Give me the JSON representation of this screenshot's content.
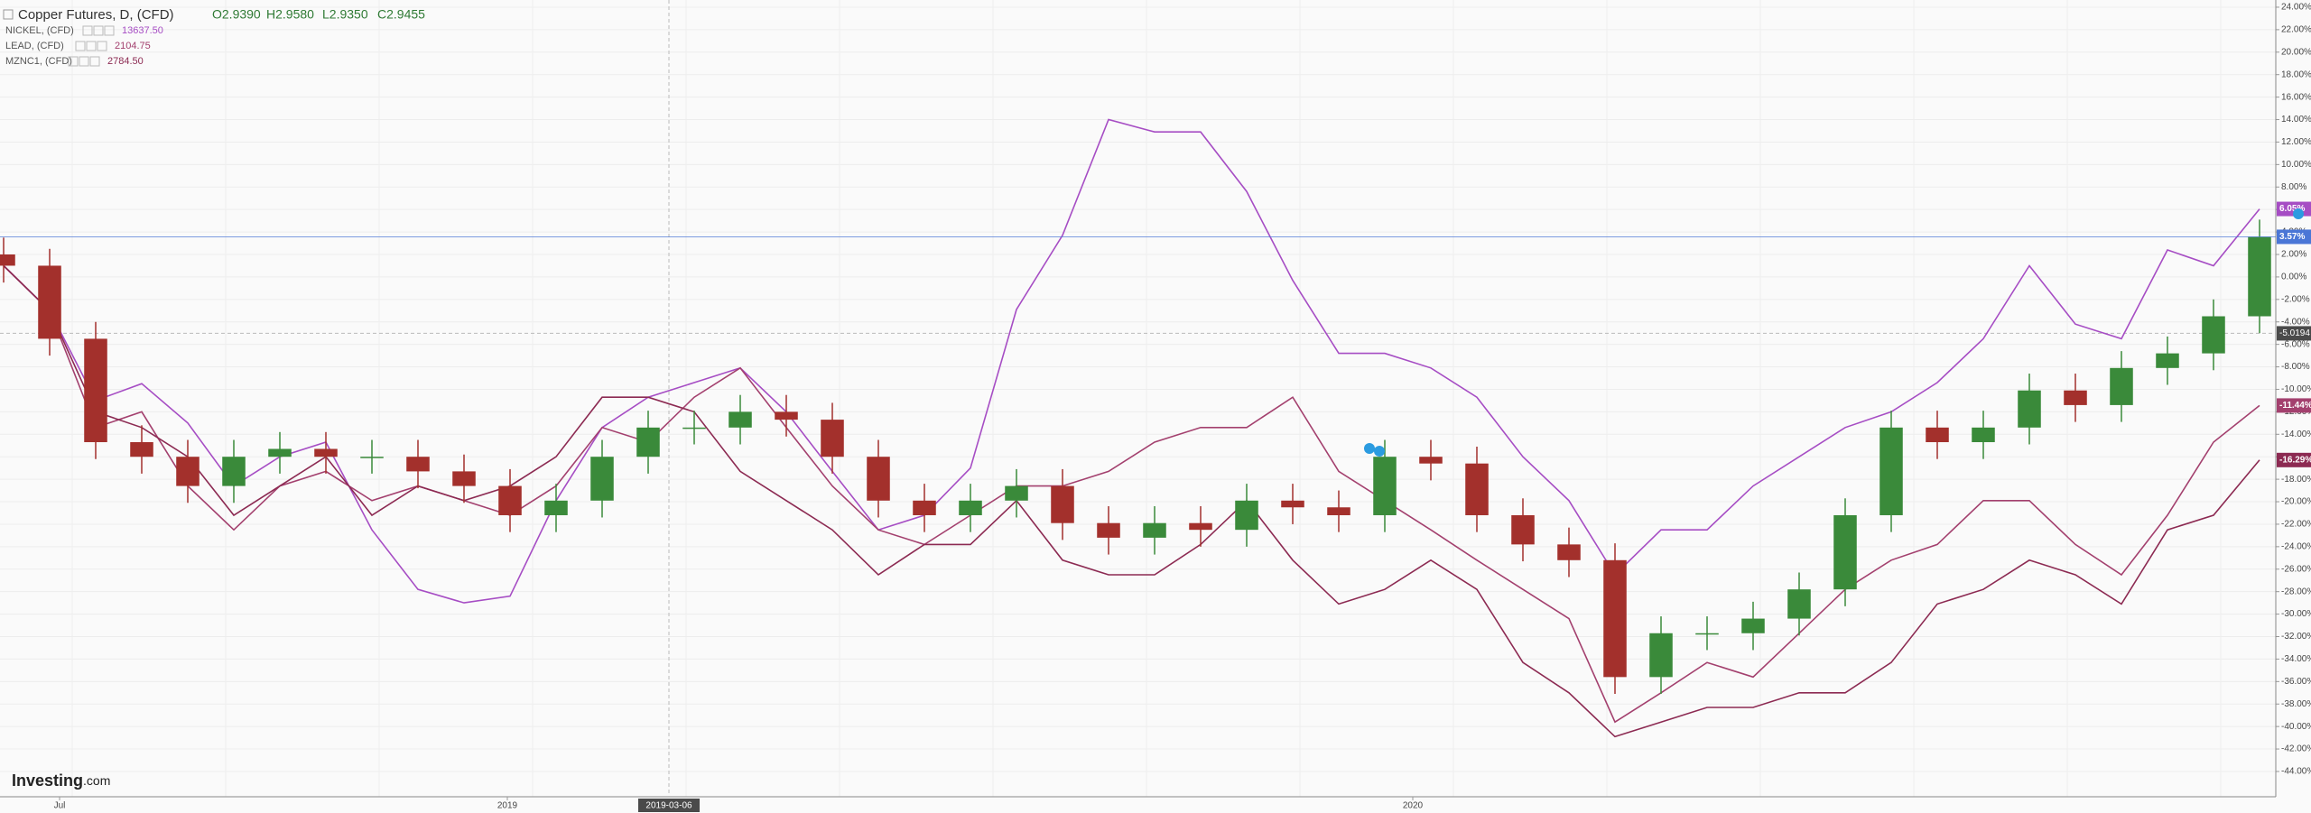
{
  "chart_data": {
    "type": "candlestick",
    "title": "Copper Futures, D, (CFD)",
    "quote": [
      "O2.9390",
      "H2.9580",
      "L2.9350",
      "C2.9455"
    ],
    "color_up": "#3a8a3a",
    "color_down": "#a3302c",
    "last_color": "#4a76d6",
    "last_value_label": "3.57%",
    "open": [
      2,
      1,
      -5.5,
      -14.7,
      -16,
      -18.6,
      -16,
      -15.3,
      -16,
      -16,
      -17.3,
      -18.6,
      -21.2,
      -19.9,
      -16,
      -13.4,
      -13.4,
      -12,
      -12.7,
      -16,
      -19.9,
      -21.2,
      -19.9,
      -18.6,
      -21.9,
      -23.2,
      -21.9,
      -22.5,
      -19.9,
      -20.5,
      -21.2,
      -16,
      -16.6,
      -21.2,
      -23.8,
      -25.2,
      -35.6,
      -31.7,
      -31.7,
      -30.4,
      -27.8,
      -21.2,
      -13.4,
      -14.7,
      -13.4,
      -10.1,
      -11.4,
      -8.1,
      -6.8,
      -3.5
    ],
    "high": [
      3.5,
      2.5,
      -4,
      -13.2,
      -14.5,
      -14.5,
      -13.8,
      -13.8,
      -14.5,
      -14.5,
      -15.8,
      -17.1,
      -18.4,
      -14.5,
      -11.9,
      -11.9,
      -10.5,
      -10.5,
      -11.2,
      -14.5,
      -18.4,
      -18.4,
      -17.1,
      -17.1,
      -20.4,
      -20.4,
      -20.4,
      -18.4,
      -18.4,
      -19,
      -14.5,
      -14.5,
      -15.1,
      -19.7,
      -22.3,
      -23.7,
      -30.2,
      -30.2,
      -28.9,
      -26.3,
      -19.7,
      -11.9,
      -11.9,
      -11.9,
      -8.6,
      -8.6,
      -6.6,
      -5.3,
      -2,
      5.1
    ],
    "low": [
      -0.5,
      -7,
      -16.2,
      -17.5,
      -20.1,
      -20.1,
      -17.5,
      -17.5,
      -17.5,
      -18.8,
      -20.1,
      -22.7,
      -22.7,
      -21.4,
      -17.5,
      -14.9,
      -14.9,
      -14.2,
      -17.5,
      -21.4,
      -22.7,
      -22.7,
      -21.4,
      -23.4,
      -24.7,
      -24.7,
      -24,
      -24,
      -22,
      -22.7,
      -22.7,
      -18.1,
      -22.7,
      -25.3,
      -26.7,
      -37.1,
      -37.1,
      -33.2,
      -33.2,
      -31.9,
      -29.3,
      -22.7,
      -16.2,
      -16.2,
      -14.9,
      -12.9,
      -12.9,
      -9.6,
      -8.3,
      -5
    ],
    "close": [
      1,
      -5.5,
      -14.7,
      -16,
      -18.6,
      -16,
      -15.3,
      -16,
      -16,
      -17.3,
      -18.6,
      -21.2,
      -19.9,
      -16,
      -13.4,
      -13.4,
      -12,
      -12.7,
      -16,
      -19.9,
      -21.2,
      -19.9,
      -18.6,
      -21.9,
      -23.2,
      -21.9,
      -22.5,
      -19.9,
      -20.5,
      -21.2,
      -16,
      -16.6,
      -21.2,
      -23.8,
      -25.2,
      -35.6,
      -31.7,
      -31.7,
      -30.4,
      -27.8,
      -21.2,
      -13.4,
      -14.7,
      -13.4,
      -10.1,
      -11.4,
      -8.1,
      -6.8,
      -3.5,
      3.57
    ],
    "series": [
      {
        "name": "NICKEL, (CFD)",
        "price": "13637.50",
        "color": "#a64dc4",
        "last_value_label": "6.05%",
        "values": [
          1,
          -3,
          -11,
          -9.5,
          -13,
          -18.6,
          -16,
          -14.7,
          -22.5,
          -27.8,
          -29,
          -28.4,
          -19.9,
          -13.4,
          -10.7,
          -9.4,
          -8.1,
          -12,
          -17.3,
          -22.5,
          -21.2,
          -17,
          -2.9,
          3.7,
          14,
          12.9,
          12.9,
          7.6,
          -0.3,
          -6.8,
          -6.8,
          -8.1,
          -10.7,
          -16,
          -19.9,
          -26.5,
          -22.5,
          -22.5,
          -18.6,
          -16,
          -13.4,
          -12,
          -9.4,
          -5.5,
          1,
          -4.2,
          -5.5,
          2.4,
          1,
          6.05
        ]
      },
      {
        "name": "LEAD, (CFD)",
        "price": "2104.75",
        "color": "#a3406e",
        "last_value_label": "-11.44%",
        "values": [
          1,
          -3,
          -13.4,
          -12,
          -18.6,
          -22.5,
          -18.6,
          -17.3,
          -19.9,
          -18.6,
          -19.9,
          -21.2,
          -18.6,
          -13.4,
          -14.7,
          -10.7,
          -8.1,
          -13.4,
          -18.6,
          -22.5,
          -23.8,
          -21.2,
          -18.6,
          -18.6,
          -17.3,
          -14.7,
          -13.4,
          -13.4,
          -10.7,
          -17.3,
          -19.9,
          -22.5,
          -25.2,
          -27.8,
          -30.4,
          -39.6,
          -37,
          -34.3,
          -35.6,
          -31.7,
          -27.8,
          -25.2,
          -23.8,
          -19.9,
          -19.9,
          -23.8,
          -26.5,
          -21.2,
          -14.7,
          -11.44
        ]
      },
      {
        "name": "MZNC1, (CFD)",
        "price": "2784.50",
        "color": "#8c2a52",
        "last_value_label": "-16.29%",
        "values": [
          1,
          -3,
          -12,
          -13.4,
          -16,
          -21.2,
          -18.6,
          -16,
          -21.2,
          -18.6,
          -19.9,
          -18.6,
          -16,
          -10.7,
          -10.7,
          -12,
          -17.3,
          -19.9,
          -22.5,
          -26.5,
          -23.8,
          -23.8,
          -19.9,
          -25.2,
          -26.5,
          -26.5,
          -23.8,
          -19.9,
          -25.2,
          -29.1,
          -27.8,
          -25.2,
          -27.8,
          -34.3,
          -37,
          -40.9,
          -39.6,
          -38.3,
          -38.3,
          -37,
          -37,
          -34.3,
          -29.1,
          -27.8,
          -25.2,
          -26.5,
          -29.1,
          -22.5,
          -21.2,
          -16.29
        ]
      }
    ],
    "ylim": [
      -46.25,
      24.64
    ],
    "yticks": [
      {
        "value": 24,
        "label": "24.00%"
      },
      {
        "value": 22,
        "label": "22.00%"
      },
      {
        "value": 20,
        "label": "20.00%"
      },
      {
        "value": 18,
        "label": "18.00%"
      },
      {
        "value": 16,
        "label": "16.00%"
      },
      {
        "value": 14,
        "label": "14.00%"
      },
      {
        "value": 12,
        "label": "12.00%"
      },
      {
        "value": 10,
        "label": "10.00%"
      },
      {
        "value": 8,
        "label": "8.00%"
      },
      {
        "value": 6,
        "label": "6.00%"
      },
      {
        "value": 4,
        "label": "4.00%"
      },
      {
        "value": 2,
        "label": "2.00%"
      },
      {
        "value": 0,
        "label": "0.00%"
      },
      {
        "value": -2,
        "label": "-2.00%"
      },
      {
        "value": -4,
        "label": "-4.00%"
      },
      {
        "value": -6,
        "label": "-6.00%"
      },
      {
        "value": -8,
        "label": "-8.00%"
      },
      {
        "value": -10,
        "label": "-10.00%"
      },
      {
        "value": -12,
        "label": "-12.00%"
      },
      {
        "value": -14,
        "label": "-14.00%"
      },
      {
        "value": -16,
        "label": "-16.00%"
      },
      {
        "value": -18,
        "label": "-18.00%"
      },
      {
        "value": -20,
        "label": "-20.00%"
      },
      {
        "value": -22,
        "label": "-22.00%"
      },
      {
        "value": -24,
        "label": "-24.00%"
      },
      {
        "value": -26,
        "label": "-26.00%"
      },
      {
        "value": -28,
        "label": "-28.00%"
      },
      {
        "value": -30,
        "label": "-30.00%"
      },
      {
        "value": -32,
        "label": "-32.00%"
      },
      {
        "value": -34,
        "label": "-34.00%"
      },
      {
        "value": -36,
        "label": "-36.00%"
      },
      {
        "value": -38,
        "label": "-38.00%"
      },
      {
        "value": -40,
        "label": "-40.00%"
      },
      {
        "value": -42,
        "label": "-42.00%"
      },
      {
        "value": -44,
        "label": "-44.00%"
      }
    ],
    "x_labels": [
      "Jul",
      "2019",
      "2020"
    ],
    "crosshair": {
      "y": -5.0194,
      "x_label": "2019-03-06"
    },
    "grid": true,
    "watermark": [
      "Investing",
      ".com"
    ]
  }
}
